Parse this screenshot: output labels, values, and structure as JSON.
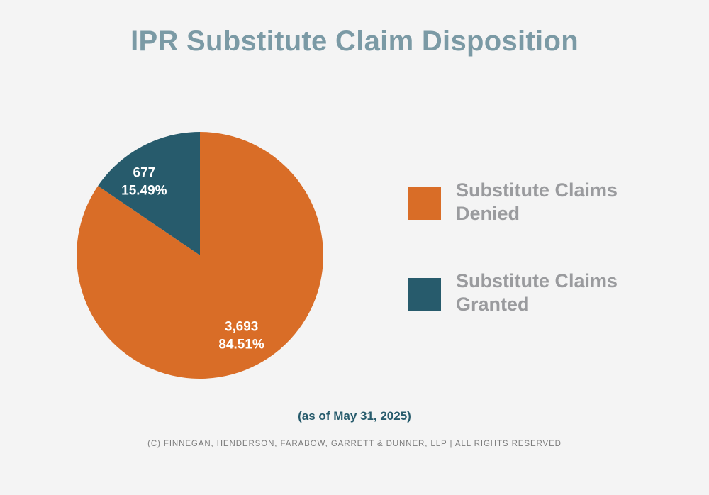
{
  "colors": {
    "title": "#7b9aa5",
    "denied": "#d96d27",
    "granted": "#275b6c",
    "as_of": "#275b6c"
  },
  "chart_data": {
    "type": "pie",
    "title": "IPR Substitute Claim Disposition",
    "start_angle_deg": 0,
    "direction": "clockwise",
    "slices": [
      {
        "label": "Substitute Claims Denied",
        "value": 3693,
        "value_label": "3,693",
        "percent_label": "84.51%",
        "color": "#d96d27"
      },
      {
        "label": "Substitute Claims Granted",
        "value": 677,
        "value_label": "677",
        "percent_label": "15.49%",
        "color": "#275b6c"
      }
    ],
    "legend": {
      "placement": "right",
      "entries": [
        {
          "line1": "Substitute Claims",
          "line2": "Denied",
          "color": "#d96d27"
        },
        {
          "line1": "Substitute Claims",
          "line2": "Granted",
          "color": "#275b6c"
        }
      ]
    }
  },
  "footer": {
    "as_of": "(as of May 31, 2025)",
    "copyright": "(C) FINNEGAN, HENDERSON, FARABOW, GARRETT & DUNNER, LLP | ALL RIGHTS RESERVED"
  }
}
